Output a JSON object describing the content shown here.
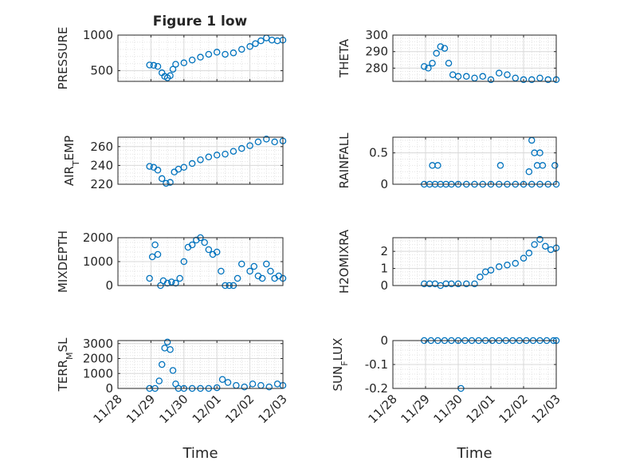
{
  "figure": {
    "title": "Figure 1 low",
    "marker_color": "#0072BD",
    "axis_color": "#262626"
  },
  "chart_data": [
    {
      "type": "scatter",
      "ylabel": "PRESSURE",
      "title": "Figure 1 low",
      "xlim": [
        "11/28",
        "12/03"
      ],
      "ylim": [
        350,
        1000
      ],
      "yticks": [
        500,
        1000
      ],
      "grid": true,
      "x": [
        "11/28 23:00",
        "11/29 02:00",
        "11/29 05:00",
        "11/29 08:00",
        "11/29 10:00",
        "11/29 12:00",
        "11/29 14:00",
        "11/29 16:00",
        "11/29 18:00",
        "11/30 00:00",
        "11/30 06:00",
        "11/30 12:00",
        "11/30 18:00",
        "12/01 00:00",
        "12/01 06:00",
        "12/01 12:00",
        "12/01 18:00",
        "12/02 00:00",
        "12/02 04:00",
        "12/02 08:00",
        "12/02 12:00",
        "12/02 16:00",
        "12/02 20:00",
        "12/03 00:00"
      ],
      "y": [
        580,
        575,
        560,
        470,
        420,
        400,
        430,
        520,
        590,
        610,
        650,
        690,
        730,
        760,
        730,
        750,
        800,
        840,
        880,
        920,
        960,
        930,
        920,
        930
      ]
    },
    {
      "type": "scatter",
      "ylabel": "THETA",
      "xlim": [
        "11/28",
        "12/03"
      ],
      "ylim": [
        272,
        300
      ],
      "yticks": [
        280,
        290,
        300
      ],
      "grid": true,
      "x": [
        "11/28 23:00",
        "11/29 02:00",
        "11/29 05:00",
        "11/29 08:00",
        "11/29 11:00",
        "11/29 14:00",
        "11/29 17:00",
        "11/29 20:00",
        "11/30 00:00",
        "11/30 06:00",
        "11/30 12:00",
        "11/30 18:00",
        "12/01 00:00",
        "12/01 06:00",
        "12/01 12:00",
        "12/01 18:00",
        "12/02 00:00",
        "12/02 06:00",
        "12/02 12:00",
        "12/02 18:00",
        "12/03 00:00"
      ],
      "y": [
        281,
        280,
        283,
        289,
        293,
        292,
        283,
        276,
        275,
        275,
        274,
        275,
        273,
        277,
        276,
        274,
        273,
        273,
        274,
        273,
        273
      ]
    },
    {
      "type": "scatter",
      "ylabel": "AIR_TEMP",
      "xlim": [
        "11/28",
        "12/03"
      ],
      "ylim": [
        220,
        270
      ],
      "yticks": [
        220,
        240,
        260
      ],
      "grid": true,
      "x": [
        "11/28 23:00",
        "11/29 02:00",
        "11/29 05:00",
        "11/29 08:00",
        "11/29 11:00",
        "11/29 14:00",
        "11/29 17:00",
        "11/29 20:00",
        "11/30 00:00",
        "11/30 06:00",
        "11/30 12:00",
        "11/30 18:00",
        "12/01 00:00",
        "12/01 06:00",
        "12/01 12:00",
        "12/01 18:00",
        "12/02 00:00",
        "12/02 06:00",
        "12/02 12:00",
        "12/02 18:00",
        "12/03 00:00"
      ],
      "y": [
        239,
        238,
        235,
        226,
        221,
        222,
        233,
        236,
        238,
        242,
        246,
        249,
        251,
        252,
        255,
        258,
        261,
        265,
        268,
        265,
        266
      ]
    },
    {
      "type": "scatter",
      "ylabel": "RAINFALL",
      "xlim": [
        "11/28",
        "12/03"
      ],
      "ylim": [
        0,
        0.75
      ],
      "yticks": [
        0,
        0.5
      ],
      "grid": true,
      "x": [
        "11/28 23:00",
        "11/29 03:00",
        "11/29 07:00",
        "11/29 11:00",
        "11/29 15:00",
        "11/29 19:00",
        "11/30 00:00",
        "11/30 06:00",
        "11/30 12:00",
        "11/30 18:00",
        "12/01 00:00",
        "12/01 06:00",
        "12/01 12:00",
        "12/01 18:00",
        "12/02 00:00",
        "12/02 06:00",
        "12/02 12:00",
        "12/02 18:00",
        "12/03 00:00",
        "11/29 05:00",
        "11/29 09:00",
        "12/01 07:00",
        "12/02 04:00",
        "12/02 06:00",
        "12/02 08:00",
        "12/02 10:00",
        "12/02 12:00",
        "12/02 14:00",
        "12/02 23:00"
      ],
      "y": [
        0,
        0,
        0,
        0,
        0,
        0,
        0,
        0,
        0,
        0,
        0,
        0,
        0,
        0,
        0,
        0,
        0,
        0,
        0,
        0.3,
        0.3,
        0.3,
        0.2,
        0.7,
        0.5,
        0.3,
        0.5,
        0.3,
        0.3
      ]
    },
    {
      "type": "scatter",
      "ylabel": "MIXDEPTH",
      "xlim": [
        "11/28",
        "12/03"
      ],
      "ylim": [
        0,
        2000
      ],
      "yticks": [
        0,
        1000,
        2000
      ],
      "grid": true,
      "x": [
        "11/28 23:00",
        "11/29 01:00",
        "11/29 03:00",
        "11/29 05:00",
        "11/29 07:00",
        "11/29 09:00",
        "11/29 12:00",
        "11/29 15:00",
        "11/29 18:00",
        "11/29 21:00",
        "11/30 00:00",
        "11/30 03:00",
        "11/30 06:00",
        "11/30 09:00",
        "11/30 12:00",
        "11/30 15:00",
        "11/30 18:00",
        "11/30 21:00",
        "12/01 00:00",
        "12/01 03:00",
        "12/01 06:00",
        "12/01 09:00",
        "12/01 12:00",
        "12/01 15:00",
        "12/01 18:00",
        "12/02 00:00",
        "12/02 03:00",
        "12/02 06:00",
        "12/02 09:00",
        "12/02 12:00",
        "12/02 15:00",
        "12/02 18:00",
        "12/02 21:00",
        "12/03 00:00"
      ],
      "y": [
        300,
        1200,
        1700,
        1300,
        0,
        200,
        100,
        150,
        100,
        300,
        1000,
        1600,
        1700,
        1900,
        2000,
        1800,
        1500,
        1300,
        1400,
        600,
        0,
        0,
        0,
        300,
        900,
        600,
        800,
        400,
        300,
        900,
        600,
        300,
        400,
        300
      ]
    },
    {
      "type": "scatter",
      "ylabel": "H2OMIXRA",
      "xlim": [
        "11/28",
        "12/03"
      ],
      "ylim": [
        0,
        2.8
      ],
      "yticks": [
        0,
        1,
        2
      ],
      "grid": true,
      "x": [
        "11/28 23:00",
        "11/29 03:00",
        "11/29 07:00",
        "11/29 11:00",
        "11/29 15:00",
        "11/29 19:00",
        "11/30 00:00",
        "11/30 06:00",
        "11/30 12:00",
        "11/30 16:00",
        "11/30 20:00",
        "12/01 00:00",
        "12/01 06:00",
        "12/01 12:00",
        "12/01 18:00",
        "12/02 00:00",
        "12/02 04:00",
        "12/02 08:00",
        "12/02 12:00",
        "12/02 16:00",
        "12/02 20:00",
        "12/03 00:00"
      ],
      "y": [
        0.1,
        0.1,
        0.1,
        0,
        0.1,
        0.1,
        0.1,
        0.1,
        0.1,
        0.5,
        0.8,
        0.9,
        1.1,
        1.2,
        1.3,
        1.6,
        1.9,
        2.4,
        2.7,
        2.3,
        2.1,
        2.2
      ]
    },
    {
      "type": "scatter",
      "ylabel": "TERR_MSL",
      "xlabel": "Time",
      "xlim": [
        "11/28",
        "12/03"
      ],
      "xticks": [
        "11/28",
        "11/29",
        "11/30",
        "12/01",
        "12/02",
        "12/03"
      ],
      "ylim": [
        0,
        3200
      ],
      "yticks": [
        0,
        1000,
        2000,
        3000
      ],
      "grid": true,
      "x": [
        "11/28 23:00",
        "11/29 03:00",
        "11/29 06:00",
        "11/29 08:00",
        "11/29 10:00",
        "11/29 12:00",
        "11/29 14:00",
        "11/29 16:00",
        "11/29 18:00",
        "11/29 20:00",
        "11/30 00:00",
        "11/30 06:00",
        "11/30 12:00",
        "11/30 18:00",
        "12/01 00:00",
        "12/01 04:00",
        "12/01 08:00",
        "12/01 14:00",
        "12/01 20:00",
        "12/02 02:00",
        "12/02 08:00",
        "12/02 14:00",
        "12/02 20:00",
        "12/03 00:00"
      ],
      "y": [
        0,
        0,
        500,
        1600,
        2700,
        3100,
        2600,
        1200,
        300,
        0,
        0,
        0,
        0,
        0,
        50,
        600,
        400,
        200,
        100,
        300,
        200,
        100,
        300,
        200
      ]
    },
    {
      "type": "scatter",
      "ylabel": "SUN_FLUX",
      "xlabel": "Time",
      "xlim": [
        "11/28",
        "12/03"
      ],
      "xticks": [
        "11/28",
        "11/29",
        "11/30",
        "12/01",
        "12/02",
        "12/03"
      ],
      "ylim": [
        -0.2,
        0
      ],
      "yticks": [
        -0.2,
        -0.1,
        0
      ],
      "grid": true,
      "x": [
        "11/28 23:00",
        "11/29 04:00",
        "11/29 09:00",
        "11/29 14:00",
        "11/29 19:00",
        "11/30 00:00",
        "11/30 05:00",
        "11/30 10:00",
        "11/30 15:00",
        "11/30 20:00",
        "12/01 01:00",
        "12/01 06:00",
        "12/01 11:00",
        "12/01 16:00",
        "12/01 21:00",
        "12/02 02:00",
        "12/02 07:00",
        "12/02 12:00",
        "12/02 17:00",
        "12/02 22:00",
        "12/03 00:00",
        "11/30 02:00"
      ],
      "y": [
        0,
        0,
        0,
        0,
        0,
        0,
        0,
        0,
        0,
        0,
        0,
        0,
        0,
        0,
        0,
        0,
        0,
        0,
        0,
        0,
        0,
        -0.2
      ]
    }
  ]
}
